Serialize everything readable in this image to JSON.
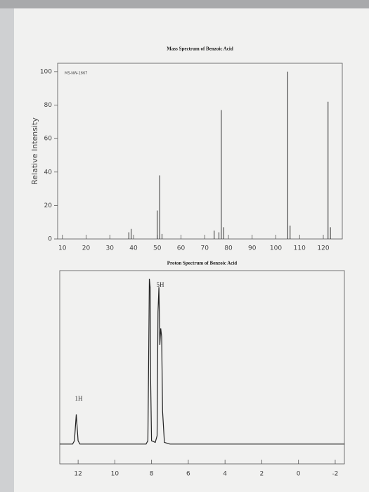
{
  "chart_data": [
    {
      "type": "stick",
      "title": "Mass Spectrum of Benzoic Acid",
      "y_label": "Relative Intensity",
      "annotation": "MS-NW-1667",
      "x": [
        38,
        39,
        50,
        51,
        52,
        74,
        76,
        77,
        78,
        105,
        106,
        122,
        123
      ],
      "values": [
        4,
        6,
        17,
        38,
        3,
        5,
        4,
        77,
        7,
        100,
        8,
        82,
        7
      ],
      "color": "#333333",
      "xlim": [
        8,
        128
      ],
      "xticks": [
        10,
        20,
        30,
        40,
        50,
        60,
        70,
        80,
        90,
        100,
        110,
        120
      ],
      "ylim": [
        0,
        105
      ],
      "yticks": [
        0,
        20,
        40,
        60,
        80,
        100
      ]
    },
    {
      "type": "line",
      "title": "Proton Spectrum of Benzoic Acid",
      "annotations": [
        "1H",
        "5H"
      ],
      "x": [
        13,
        12.3,
        12.2,
        12.15,
        12.1,
        12.05,
        12.0,
        11.9,
        8.3,
        8.2,
        8.15,
        8.12,
        8.08,
        8.05,
        8.0,
        7.8,
        7.7,
        7.65,
        7.6,
        7.55,
        7.5,
        7.45,
        7.4,
        7.3,
        7.0,
        -2.5
      ],
      "values": [
        0,
        0,
        2,
        10,
        18,
        10,
        2,
        0,
        0,
        2,
        60,
        100,
        95,
        40,
        2,
        1,
        5,
        80,
        95,
        60,
        70,
        65,
        20,
        1,
        0,
        0
      ],
      "color": "#222222",
      "xlim": [
        13,
        -2.5
      ],
      "xticks": [
        12,
        10,
        8,
        6,
        4,
        2,
        0,
        -2
      ],
      "ylim": [
        -12,
        105
      ]
    }
  ]
}
